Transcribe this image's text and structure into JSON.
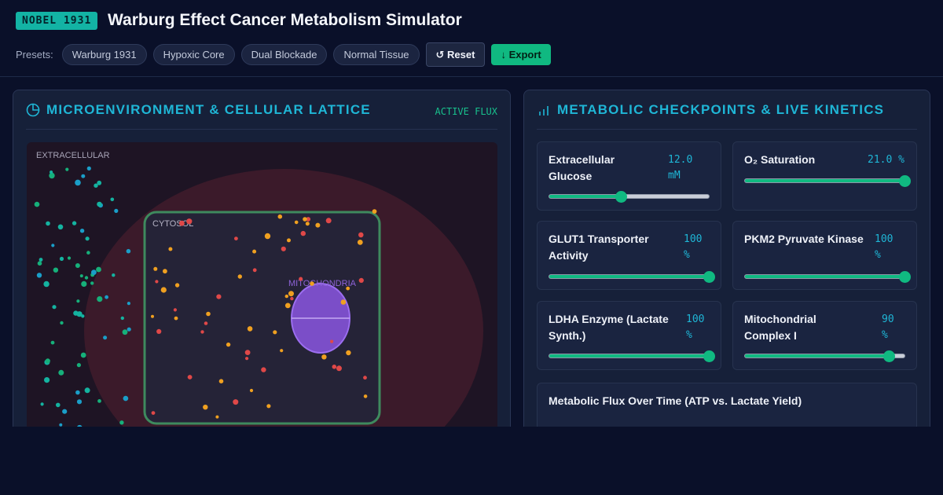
{
  "header": {
    "badge": "NOBEL 1931",
    "title": "Warburg Effect Cancer Metabolism Simulator",
    "presets_label": "Presets:",
    "presets": [
      "Warburg 1931",
      "Hypoxic Core",
      "Dual Blockade",
      "Normal Tissue"
    ],
    "reset_label": "↺ Reset",
    "export_label": "↓ Export"
  },
  "left_panel": {
    "icon": "pie-chart-icon",
    "title": "MICROENVIRONMENT & CELLULAR LATTICE",
    "status": "ACTIVE FLUX",
    "labels": {
      "extracellular": "EXTRACELLULAR",
      "cytosol": "CYTOSOL",
      "mitochondria": "MITOCHONDRIA"
    }
  },
  "right_panel": {
    "icon": "bar-chart-icon",
    "title": "METABOLIC CHECKPOINTS & LIVE KINETICS",
    "controls": [
      {
        "label": "Extracellular Glucose",
        "value": "12.0 mM",
        "fraction": 0.45
      },
      {
        "label": "O₂ Saturation",
        "value": "21.0 %",
        "fraction": 1.0
      },
      {
        "label": "GLUT1 Transporter Activity",
        "value": "100 %",
        "fraction": 1.0
      },
      {
        "label": "PKM2 Pyruvate Kinase",
        "value": "100 %",
        "fraction": 1.0
      },
      {
        "label": "LDHA Enzyme (Lactate Synth.)",
        "value": "100 %",
        "fraction": 1.0
      },
      {
        "label": "Mitochondrial Complex I",
        "value": "90 %",
        "fraction": 0.9
      }
    ],
    "flux_chart_title": "Metabolic Flux Over Time (ATP vs. Lactate Yield)"
  },
  "colors": {
    "accent_cyan": "#1fb6d6",
    "accent_green": "#10b981",
    "glucose": "#f0a020",
    "lactate": "#e04848",
    "oxygen": "#14b3a0"
  }
}
